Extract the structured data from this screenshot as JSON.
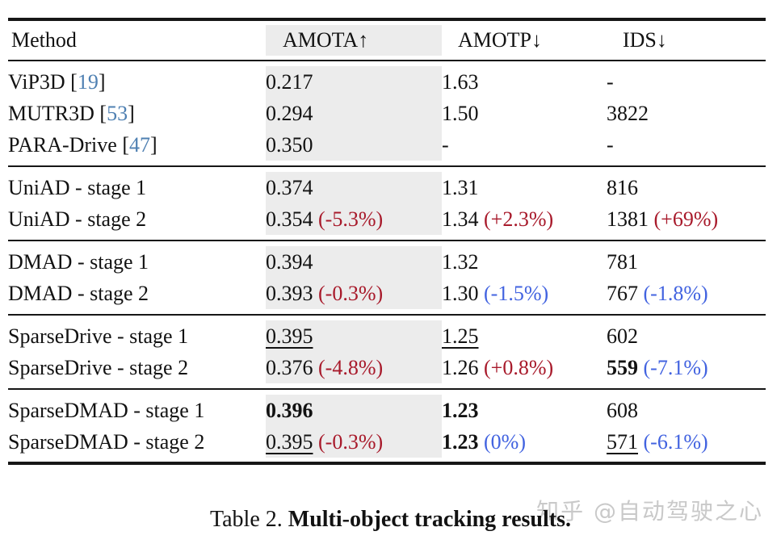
{
  "colors": {
    "text": "#121212",
    "rule": "#161616",
    "band_gray": "#ececec",
    "red": "#a81a2b",
    "blue": "#4263e0",
    "cite_blue": "#4f80b2",
    "watermark_gray": "#c9c9c9"
  },
  "table": {
    "columns": [
      {
        "label": "Method",
        "arrow": ""
      },
      {
        "label": "AMOTA",
        "arrow": "↑"
      },
      {
        "label": "AMOTP",
        "arrow": "↓"
      },
      {
        "label": "IDS",
        "arrow": "↓"
      }
    ],
    "groups": [
      {
        "rows": [
          {
            "method": [
              {
                "text": "ViP3D ["
              },
              {
                "text": "19",
                "color": "cite"
              },
              {
                "text": "]"
              }
            ],
            "amota": [
              {
                "text": "0.217"
              }
            ],
            "amotp": [
              {
                "text": "1.63"
              }
            ],
            "ids": [
              {
                "text": "-"
              }
            ]
          },
          {
            "method": [
              {
                "text": "MUTR3D ["
              },
              {
                "text": "53",
                "color": "cite"
              },
              {
                "text": "]"
              }
            ],
            "amota": [
              {
                "text": "0.294"
              }
            ],
            "amotp": [
              {
                "text": "1.50"
              }
            ],
            "ids": [
              {
                "text": "3822"
              }
            ]
          },
          {
            "method": [
              {
                "text": "PARA-Drive ["
              },
              {
                "text": "47",
                "color": "cite"
              },
              {
                "text": "]"
              }
            ],
            "amota": [
              {
                "text": "0.350"
              }
            ],
            "amotp": [
              {
                "text": "-"
              }
            ],
            "ids": [
              {
                "text": "-"
              }
            ]
          }
        ]
      },
      {
        "rows": [
          {
            "method": [
              {
                "text": "UniAD - stage 1"
              }
            ],
            "amota": [
              {
                "text": "0.374"
              }
            ],
            "amotp": [
              {
                "text": "1.31"
              }
            ],
            "ids": [
              {
                "text": "816"
              }
            ]
          },
          {
            "method": [
              {
                "text": "UniAD - stage 2"
              }
            ],
            "amota": [
              {
                "text": "0.354"
              },
              {
                "text": " (-5.3%)",
                "color": "red"
              }
            ],
            "amotp": [
              {
                "text": "1.34"
              },
              {
                "text": " (+2.3%)",
                "color": "red"
              }
            ],
            "ids": [
              {
                "text": "1381"
              },
              {
                "text": " (+69%)",
                "color": "red"
              }
            ]
          }
        ]
      },
      {
        "rows": [
          {
            "method": [
              {
                "text": "DMAD - stage 1"
              }
            ],
            "amota": [
              {
                "text": "0.394"
              }
            ],
            "amotp": [
              {
                "text": "1.32"
              }
            ],
            "ids": [
              {
                "text": "781"
              }
            ]
          },
          {
            "method": [
              {
                "text": "DMAD - stage 2"
              }
            ],
            "amota": [
              {
                "text": "0.393"
              },
              {
                "text": " (-0.3%)",
                "color": "red"
              }
            ],
            "amotp": [
              {
                "text": "1.30"
              },
              {
                "text": " (-1.5%)",
                "color": "blue"
              }
            ],
            "ids": [
              {
                "text": "767"
              },
              {
                "text": " (-1.8%)",
                "color": "blue"
              }
            ]
          }
        ]
      },
      {
        "rows": [
          {
            "method": [
              {
                "text": "SparseDrive - stage 1"
              }
            ],
            "amota": [
              {
                "text": "0.395",
                "underline": true
              }
            ],
            "amotp": [
              {
                "text": "1.25",
                "underline": true
              }
            ],
            "ids": [
              {
                "text": "602"
              }
            ]
          },
          {
            "method": [
              {
                "text": "SparseDrive - stage 2"
              }
            ],
            "amota": [
              {
                "text": "0.376"
              },
              {
                "text": " (-4.8%)",
                "color": "red"
              }
            ],
            "amotp": [
              {
                "text": "1.26"
              },
              {
                "text": " (+0.8%)",
                "color": "red"
              }
            ],
            "ids": [
              {
                "text": "559",
                "bold": true
              },
              {
                "text": " (-7.1%)",
                "color": "blue"
              }
            ]
          }
        ]
      },
      {
        "rows": [
          {
            "method": [
              {
                "text": "SparseDMAD - stage 1"
              }
            ],
            "amota": [
              {
                "text": "0.396",
                "bold": true
              }
            ],
            "amotp": [
              {
                "text": "1.23",
                "bold": true
              }
            ],
            "ids": [
              {
                "text": "608"
              }
            ]
          },
          {
            "method": [
              {
                "text": "SparseDMAD - stage 2"
              }
            ],
            "amota": [
              {
                "text": "0.395",
                "underline": true
              },
              {
                "text": " (-0.3%)",
                "color": "red"
              }
            ],
            "amotp": [
              {
                "text": "1.23",
                "bold": true
              },
              {
                "text": " (0%)",
                "color": "blue"
              }
            ],
            "ids": [
              {
                "text": "571",
                "underline": true
              },
              {
                "text": " (-6.1%)",
                "color": "blue"
              }
            ]
          }
        ]
      }
    ]
  },
  "caption": {
    "prefix": "Table 2. ",
    "title": "Multi-object tracking results."
  },
  "watermark": {
    "text": "知乎 @自动驾驶之心"
  }
}
